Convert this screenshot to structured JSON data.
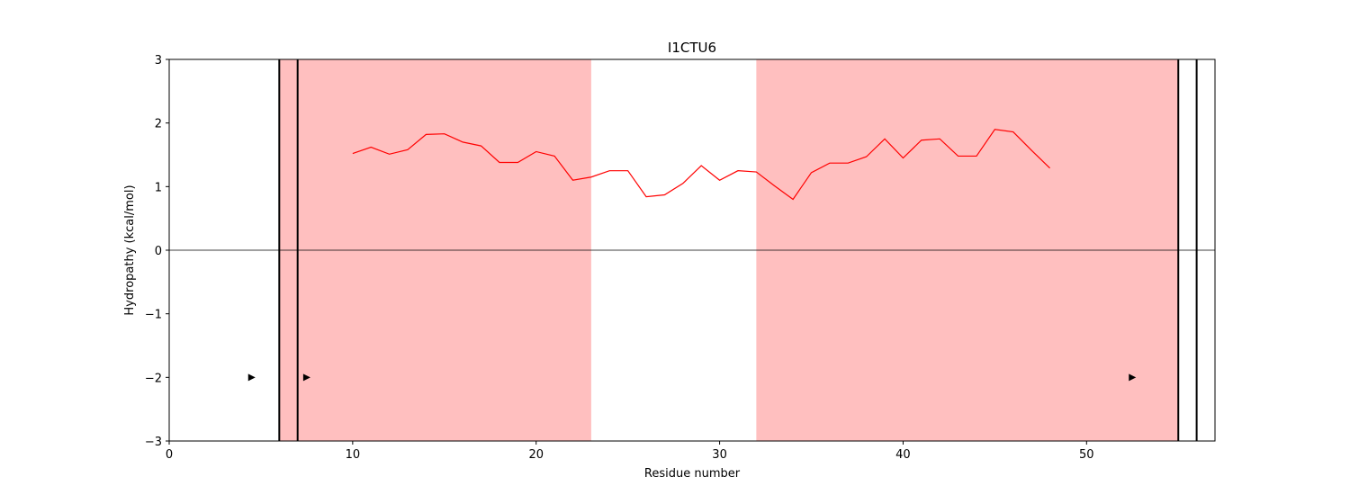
{
  "chart_data": {
    "type": "line",
    "title": "I1CTU6",
    "xlabel": "Residue number",
    "ylabel": "Hydropathy (kcal/mol)",
    "xlim": [
      0,
      57
    ],
    "ylim": [
      -3,
      3
    ],
    "xticks": [
      0,
      10,
      20,
      30,
      40,
      50
    ],
    "yticks": [
      -3,
      -2,
      -1,
      0,
      1,
      2,
      3
    ],
    "ytick_labels": [
      "−3",
      "−2",
      "−1",
      "0",
      "1",
      "2",
      "3"
    ],
    "grid": false,
    "zero_line": true,
    "series": [
      {
        "color": "#ff0000",
        "x": [
          10,
          11,
          12,
          13,
          14,
          15,
          16,
          17,
          18,
          19,
          20,
          21,
          22,
          23,
          24,
          25,
          26,
          27,
          28,
          29,
          30,
          31,
          32,
          33,
          34,
          35,
          36,
          37,
          38,
          39,
          40,
          41,
          42,
          43,
          44,
          45,
          46,
          47,
          48
        ],
        "y": [
          1.52,
          1.62,
          1.51,
          1.58,
          1.82,
          1.83,
          1.7,
          1.64,
          1.38,
          1.38,
          1.55,
          1.48,
          1.1,
          1.15,
          1.25,
          1.25,
          0.84,
          0.87,
          1.05,
          1.33,
          1.1,
          1.25,
          1.23,
          1.01,
          0.8,
          1.22,
          1.37,
          1.37,
          1.47,
          1.75,
          1.45,
          1.73,
          1.75,
          1.48,
          1.48,
          1.9,
          1.86,
          1.57,
          1.29
        ]
      }
    ],
    "shaded_regions": [
      {
        "x_start": 6,
        "x_end": 23,
        "color": "#ffbfbf"
      },
      {
        "x_start": 32,
        "x_end": 55,
        "color": "#ffbfbf"
      }
    ],
    "vertical_lines": [
      6,
      7,
      55,
      56
    ],
    "markers": [
      {
        "x": 4.5,
        "y": -2,
        "shape": "triangle-right"
      },
      {
        "x": 7.5,
        "y": -2,
        "shape": "triangle-right"
      },
      {
        "x": 52.5,
        "y": -2,
        "shape": "triangle-right"
      }
    ]
  }
}
